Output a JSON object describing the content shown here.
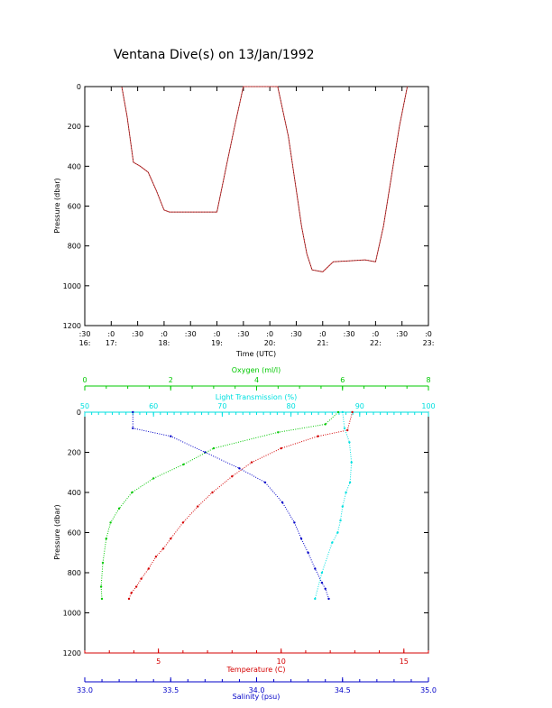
{
  "title": "Ventana Dive(s) on 13/Jan/1992",
  "colors": {
    "axis": "#000000",
    "temperature": "#d40000",
    "salinity": "#0000c8",
    "oxygen": "#00c800",
    "light": "#00e0e0",
    "pressure_line": "#cc3333"
  },
  "chart_data": [
    {
      "type": "line",
      "xlabel": "Time (UTC)",
      "ylabel": "Pressure (dbar)",
      "ylim": [
        1200,
        0
      ],
      "y_ticks": [
        "0",
        "200",
        "400",
        "600",
        "800",
        "1000",
        "1200"
      ],
      "x_ticks_top": [
        ":30",
        ":0",
        ":30",
        ":0",
        ":30",
        ":0",
        ":30",
        ":0",
        ":30",
        ":0",
        ":30",
        ":0",
        ":30",
        ":0"
      ],
      "x_ticks_bottom": [
        "16:",
        "17:",
        "",
        "18:",
        "",
        "19:",
        "",
        "20:",
        "",
        "21:",
        "",
        "22:",
        "",
        "23:"
      ],
      "xlim_hours": [
        16.5,
        23.0
      ],
      "series": [
        {
          "x": [
            17.2,
            17.3,
            17.42,
            17.55,
            17.7,
            17.85,
            18.0,
            18.1,
            18.2,
            18.5,
            18.8,
            19.0,
            19.2,
            19.35,
            19.5,
            19.7,
            19.9,
            20.15,
            20.35,
            20.5,
            20.6,
            20.7,
            20.8,
            21.0,
            21.2,
            21.5,
            21.8,
            22.0,
            22.15,
            22.3,
            22.45,
            22.6
          ],
          "y": [
            0,
            150,
            380,
            400,
            430,
            520,
            620,
            630,
            630,
            630,
            630,
            630,
            370,
            180,
            0,
            0,
            0,
            0,
            250,
            520,
            700,
            840,
            920,
            930,
            880,
            875,
            870,
            880,
            700,
            450,
            200,
            0
          ]
        }
      ]
    },
    {
      "type": "scatter",
      "ylabel": "Pressure (dbar)",
      "ylim": [
        1200,
        0
      ],
      "y_ticks": [
        "0",
        "200",
        "400",
        "600",
        "800",
        "1000",
        "1200"
      ],
      "axes": {
        "oxygen": {
          "label": "Oxygen (ml/l)",
          "range": [
            0,
            8
          ],
          "ticks": [
            "0",
            "2",
            "4",
            "6",
            "8"
          ]
        },
        "light": {
          "label": "Light Transmission (%)",
          "range": [
            50,
            100
          ],
          "ticks": [
            "50",
            "60",
            "70",
            "80",
            "90",
            "100"
          ]
        },
        "temperature": {
          "label": "Temperature (C)",
          "range": [
            2.0,
            16.0
          ],
          "ticks": [
            "5",
            "10",
            "15"
          ]
        },
        "salinity": {
          "label": "Salinity (psu)",
          "range": [
            33.0,
            35.0
          ],
          "ticks": [
            "33.0",
            "33.5",
            "34.0",
            "34.5",
            "35.0"
          ]
        }
      },
      "series": [
        {
          "name": "Temperature (C)",
          "x": [
            12.9,
            12.7,
            11.5,
            10.0,
            8.8,
            8.0,
            7.2,
            6.6,
            6.0,
            5.5,
            5.2,
            4.9,
            4.6,
            4.3,
            4.1,
            3.9,
            3.8
          ],
          "y": [
            0,
            90,
            120,
            180,
            250,
            320,
            400,
            470,
            550,
            630,
            680,
            720,
            780,
            830,
            870,
            900,
            930
          ]
        },
        {
          "name": "Salinity (psu)",
          "x": [
            33.28,
            33.28,
            33.5,
            33.7,
            33.9,
            34.05,
            34.15,
            34.22,
            34.26,
            34.3,
            34.34,
            34.38,
            34.4,
            34.42
          ],
          "y": [
            0,
            80,
            120,
            200,
            280,
            350,
            450,
            550,
            630,
            700,
            780,
            850,
            880,
            930
          ]
        },
        {
          "name": "Oxygen (ml/l)",
          "x": [
            5.9,
            5.6,
            4.5,
            3.0,
            2.3,
            1.6,
            1.1,
            0.8,
            0.6,
            0.5,
            0.42,
            0.38,
            0.4
          ],
          "y": [
            0,
            60,
            100,
            180,
            260,
            330,
            400,
            480,
            550,
            630,
            750,
            870,
            930
          ]
        },
        {
          "name": "Light Transmission (%)",
          "x": [
            87.5,
            87.8,
            88.5,
            88.8,
            88.6,
            88.0,
            87.5,
            87.2,
            86.8,
            86.0,
            84.5,
            83.5
          ],
          "y": [
            0,
            80,
            150,
            250,
            350,
            400,
            470,
            540,
            600,
            650,
            800,
            930
          ]
        }
      ]
    }
  ]
}
